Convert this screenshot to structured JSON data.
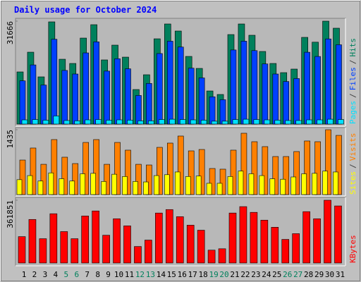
{
  "chart_data": {
    "type": "bar",
    "title": "Daily usage for October 2024",
    "categories": [
      "1",
      "2",
      "3",
      "4",
      "5",
      "6",
      "7",
      "8",
      "9",
      "10",
      "11",
      "12",
      "13",
      "14",
      "15",
      "16",
      "17",
      "18",
      "19",
      "20",
      "21",
      "22",
      "23",
      "24",
      "25",
      "26",
      "27",
      "28",
      "29",
      "30",
      "31"
    ],
    "label_colors": [
      "#000000",
      "#000000",
      "#000000",
      "#000000",
      "#00805c",
      "#00805c",
      "#000000",
      "#000000",
      "#000000",
      "#000000",
      "#000000",
      "#00805c",
      "#00805c",
      "#000000",
      "#000000",
      "#000000",
      "#000000",
      "#000000",
      "#00805c",
      "#00805c",
      "#000000",
      "#000000",
      "#000000",
      "#000000",
      "#000000",
      "#00805c",
      "#00805c",
      "#000000",
      "#000000",
      "#000000",
      "#000000"
    ],
    "legend_separator": "/",
    "panels": [
      {
        "ylim": [
          0,
          31666
        ],
        "yticks": [
          31666
        ],
        "series": [
          {
            "name": "Hits",
            "color": "#00805c",
            "values": [
              16050,
              22120,
              14530,
              31450,
              19950,
              18650,
              26460,
              30580,
              19740,
              24290,
              20600,
              10630,
              15180,
              26240,
              30800,
              28630,
              20820,
              17130,
              10190,
              9110,
              27540,
              30800,
              27330,
              22340,
              18650,
              15830,
              16920,
              26680,
              25200,
              31666,
              29500
            ]
          },
          {
            "name": "Files",
            "color": "#0040ff",
            "values": [
              13300,
              18200,
              12000,
              26100,
              16500,
              15400,
              21900,
              25300,
              16300,
              20100,
              17000,
              8800,
              12500,
              21700,
              25500,
              23700,
              17200,
              14200,
              8400,
              7500,
              22800,
              25500,
              22600,
              18500,
              15400,
              13100,
              14000,
              22100,
              20800,
              26200,
              24400
            ]
          },
          {
            "name": "Pages",
            "color": "#00e0ff",
            "values": [
              1300,
              1400,
              1200,
              2500,
              1100,
              1000,
              1300,
              1400,
              1200,
              1300,
              1200,
              1000,
              1000,
              1400,
              1500,
              1400,
              1300,
              1200,
              900,
              900,
              1400,
              1500,
              1400,
              1300,
              1200,
              1100,
              1100,
              1300,
              1300,
              1500,
              1400
            ]
          }
        ]
      },
      {
        "ylim": [
          0,
          1435
        ],
        "yticks": [
          1435
        ],
        "series": [
          {
            "name": "Visits",
            "color": "#ff8000",
            "values": [
              764,
              1030,
              670,
              1217,
              827,
              686,
              1154,
              1217,
              670,
              1154,
              983,
              670,
              655,
              1045,
              1139,
              1295,
              967,
              998,
              577,
              562,
              983,
              1357,
              1170,
              1061,
              842,
              842,
              952,
              1186,
              1170,
              1435,
              1310
            ]
          },
          {
            "name": "Sites",
            "color": "#ffff00",
            "values": [
              330,
              420,
              300,
              480,
              350,
              300,
              460,
              470,
              290,
              450,
              400,
              290,
              280,
              420,
              440,
              500,
              400,
              410,
              250,
              250,
              400,
              520,
              460,
              420,
              350,
              340,
              390,
              460,
              470,
              520,
              500
            ]
          }
        ]
      },
      {
        "ylim": [
          0,
          361851
        ],
        "yticks": [
          361851
        ],
        "series": [
          {
            "name": "KBytes",
            "color": "#ff0000",
            "values": [
              152000,
              251000,
              140000,
              284000,
              181000,
              140000,
              271000,
              300000,
              160000,
              255000,
              214000,
              95000,
              132000,
              288000,
              308000,
              267000,
              218000,
              189000,
              74000,
              82000,
              288000,
              325000,
              292000,
              247000,
              206000,
              136000,
              169000,
              296000,
              255000,
              361851,
              329000
            ]
          }
        ]
      }
    ]
  }
}
